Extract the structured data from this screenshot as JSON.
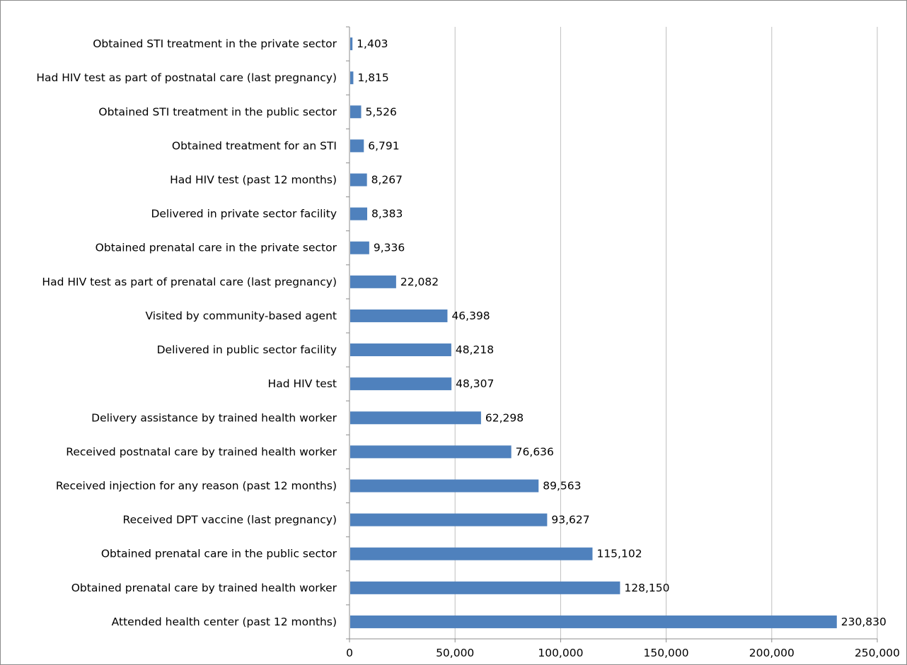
{
  "chart_data": {
    "type": "bar",
    "orientation": "horizontal",
    "categories": [
      "Obtained STI treatment in the private sector",
      "Had HIV test as part of postnatal care (last pregnancy)",
      "Obtained STI treatment in the public sector",
      "Obtained treatment for an STI",
      "Had HIV test (past 12 months)",
      "Delivered in private sector facility",
      "Obtained prenatal care in the private sector",
      "Had HIV test as part of prenatal care (last pregnancy)",
      "Visited by community-based agent",
      "Delivered in public sector facility",
      "Had HIV test",
      "Delivery assistance by trained health worker",
      "Received postnatal care by trained health worker",
      "Received injection for any reason (past 12 months)",
      "Received DPT vaccine (last pregnancy)",
      "Obtained prenatal care in the public sector",
      "Obtained prenatal care by trained health worker",
      "Attended health center (past 12 months)"
    ],
    "values": [
      1403,
      1815,
      5526,
      6791,
      8267,
      8383,
      9336,
      22082,
      46398,
      48218,
      48307,
      62298,
      76636,
      89563,
      93627,
      115102,
      128150,
      230830
    ],
    "value_labels": [
      "1,403",
      "1,815",
      "5,526",
      "6,791",
      "8,267",
      "8,383",
      "9,336",
      "22,082",
      "46,398",
      "48,218",
      "48,307",
      "62,298",
      "76,636",
      "89,563",
      "93,627",
      "115,102",
      "128,150",
      "230,830"
    ],
    "xlim": [
      0,
      250000
    ],
    "x_ticks": [
      0,
      50000,
      100000,
      150000,
      200000,
      250000
    ],
    "x_tick_labels": [
      "0",
      "50,000",
      "100,000",
      "150,000",
      "200,000",
      "250,000"
    ],
    "title": "",
    "xlabel": "",
    "ylabel": "",
    "grid": "vertical",
    "legend": "none",
    "colors": {
      "bar": "#4f81bd",
      "grid": "#bfbfbf",
      "axis": "#8c8c8c",
      "frame": "#8c8c8c"
    }
  }
}
